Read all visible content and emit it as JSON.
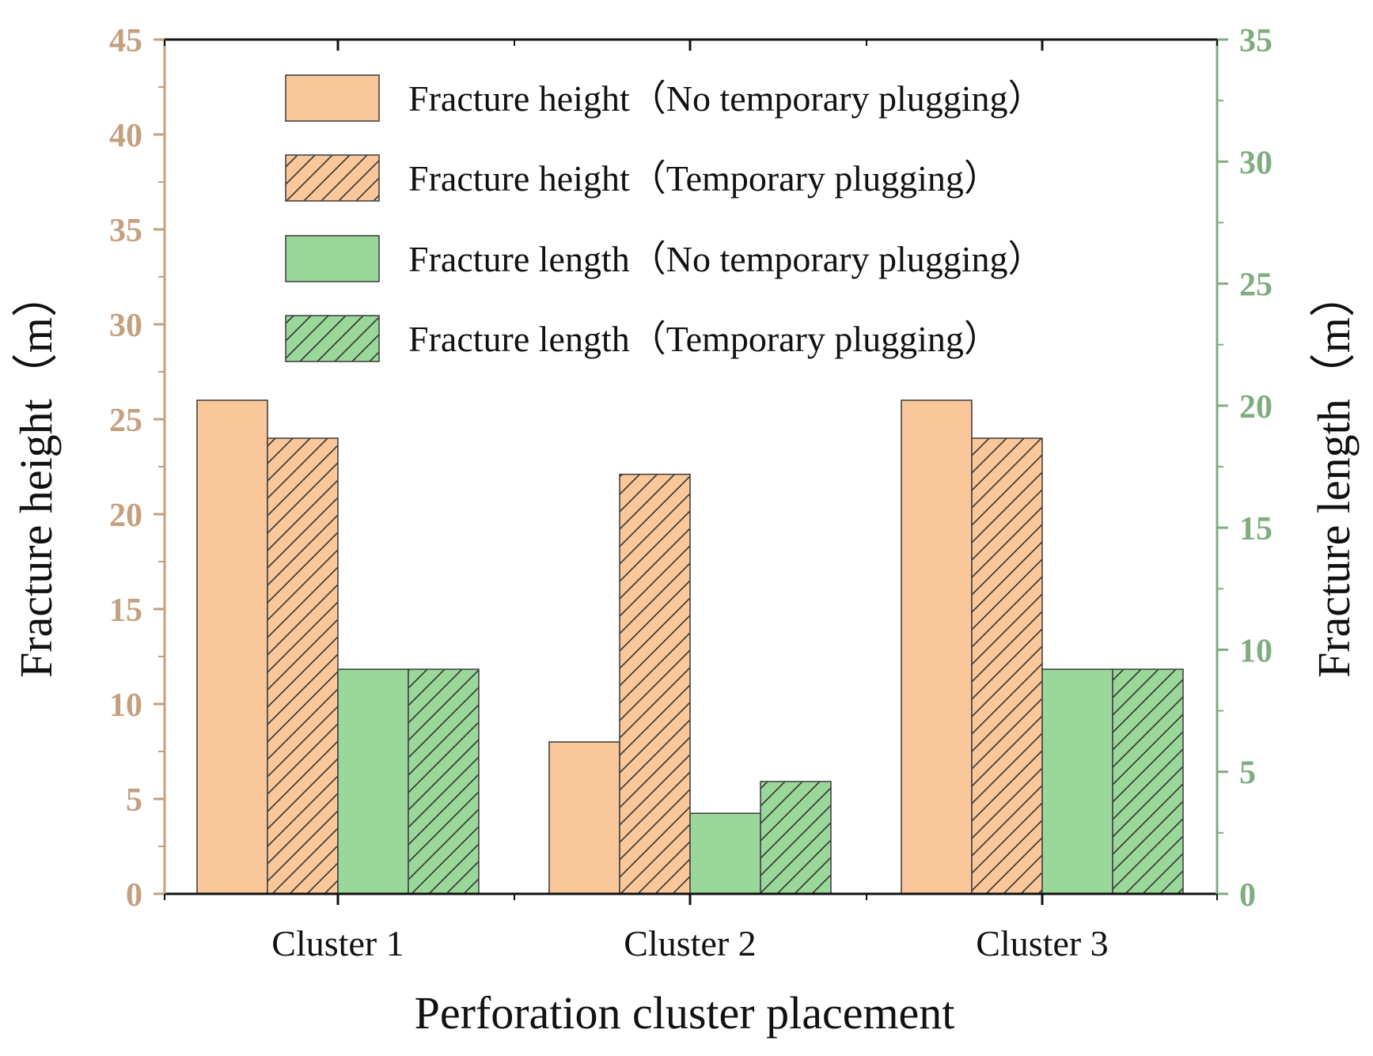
{
  "chart_data": {
    "type": "bar",
    "categories": [
      "Cluster 1",
      "Cluster 2",
      "Cluster 3"
    ],
    "xlabel": "Perforation cluster placement",
    "ylabel_left": "Fracture height（m）",
    "ylabel_right": "Fracture length（m）",
    "ylim_left": [
      0,
      45
    ],
    "ylim_right": [
      0,
      35
    ],
    "yticks_left": [
      0,
      5,
      10,
      15,
      20,
      25,
      30,
      35,
      40,
      45
    ],
    "yticks_right": [
      0,
      5,
      10,
      15,
      20,
      25,
      30,
      35
    ],
    "grid": false,
    "legend_position": "top",
    "series": [
      {
        "name": "Fracture height（No temporary plugging）",
        "axis": "left",
        "values": [
          26,
          8,
          26
        ],
        "color": "#F9C799",
        "hatched": false
      },
      {
        "name": "Fracture height（Temporary plugging）",
        "axis": "left",
        "values": [
          24,
          22.1,
          24
        ],
        "color": "#F9C799",
        "hatched": true
      },
      {
        "name": "Fracture length（No temporary plugging）",
        "axis": "right",
        "values": [
          9.2,
          3.3,
          9.2
        ],
        "color": "#9AD79A",
        "hatched": false
      },
      {
        "name": "Fracture length（Temporary plugging）",
        "axis": "right",
        "values": [
          9.2,
          4.6,
          9.2
        ],
        "color": "#9AD79A",
        "hatched": true
      }
    ],
    "colors": {
      "left_axis": "#C4A07F",
      "right_axis": "#7FAD7F",
      "bar_outline": "#444444"
    }
  }
}
